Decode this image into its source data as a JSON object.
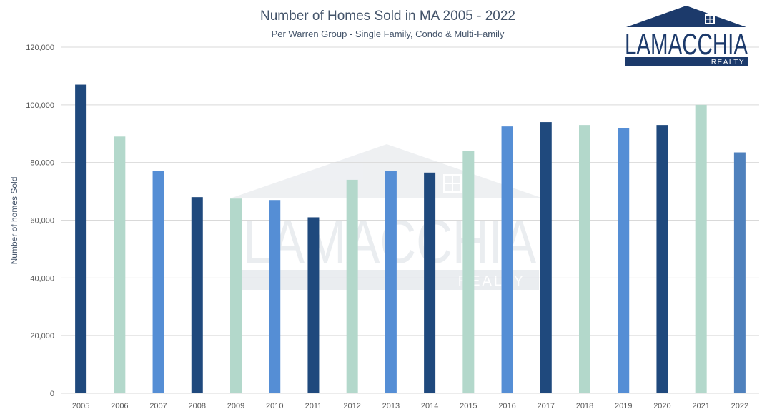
{
  "chart_data": {
    "type": "bar",
    "title": "Number of Homes Sold in MA 2005 - 2022",
    "subtitle": "Per Warren Group - Single Family, Condo & Multi-Family",
    "ylabel": "Number of homes Sold",
    "xlabel": "",
    "ylim": [
      0,
      120000
    ],
    "yticks": [
      "0",
      "20,000",
      "40,000",
      "60,000",
      "80,000",
      "100,000",
      "120,000"
    ],
    "grid": true,
    "categories": [
      "2005",
      "2006",
      "2007",
      "2008",
      "2009",
      "2010",
      "2011",
      "2012",
      "2013",
      "2014",
      "2015",
      "2016",
      "2017",
      "2018",
      "2019",
      "2020",
      "2021",
      "2022"
    ],
    "values": [
      107000,
      89000,
      77000,
      68000,
      67500,
      67000,
      61000,
      74000,
      77000,
      76500,
      84000,
      92500,
      94000,
      93000,
      92000,
      93000,
      100000,
      83500
    ],
    "colors": [
      "#1f497d",
      "#b3d8cb",
      "#558ed5",
      "#1f497d",
      "#b3d8cb",
      "#558ed5",
      "#1f497d",
      "#b3d8cb",
      "#558ed5",
      "#1f497d",
      "#b3d8cb",
      "#558ed5",
      "#1f497d",
      "#b3d8cb",
      "#558ed5",
      "#1f497d",
      "#b3d8cb",
      "#4f81bd"
    ]
  },
  "logo": {
    "main_text": "LAMACCHIA",
    "sub_text": "REALTY",
    "colors": {
      "navy": "#1c3a6b",
      "white": "#ffffff"
    }
  },
  "watermark": {
    "main_text": "LAMACCHIA",
    "sub_text": "REALTY"
  }
}
